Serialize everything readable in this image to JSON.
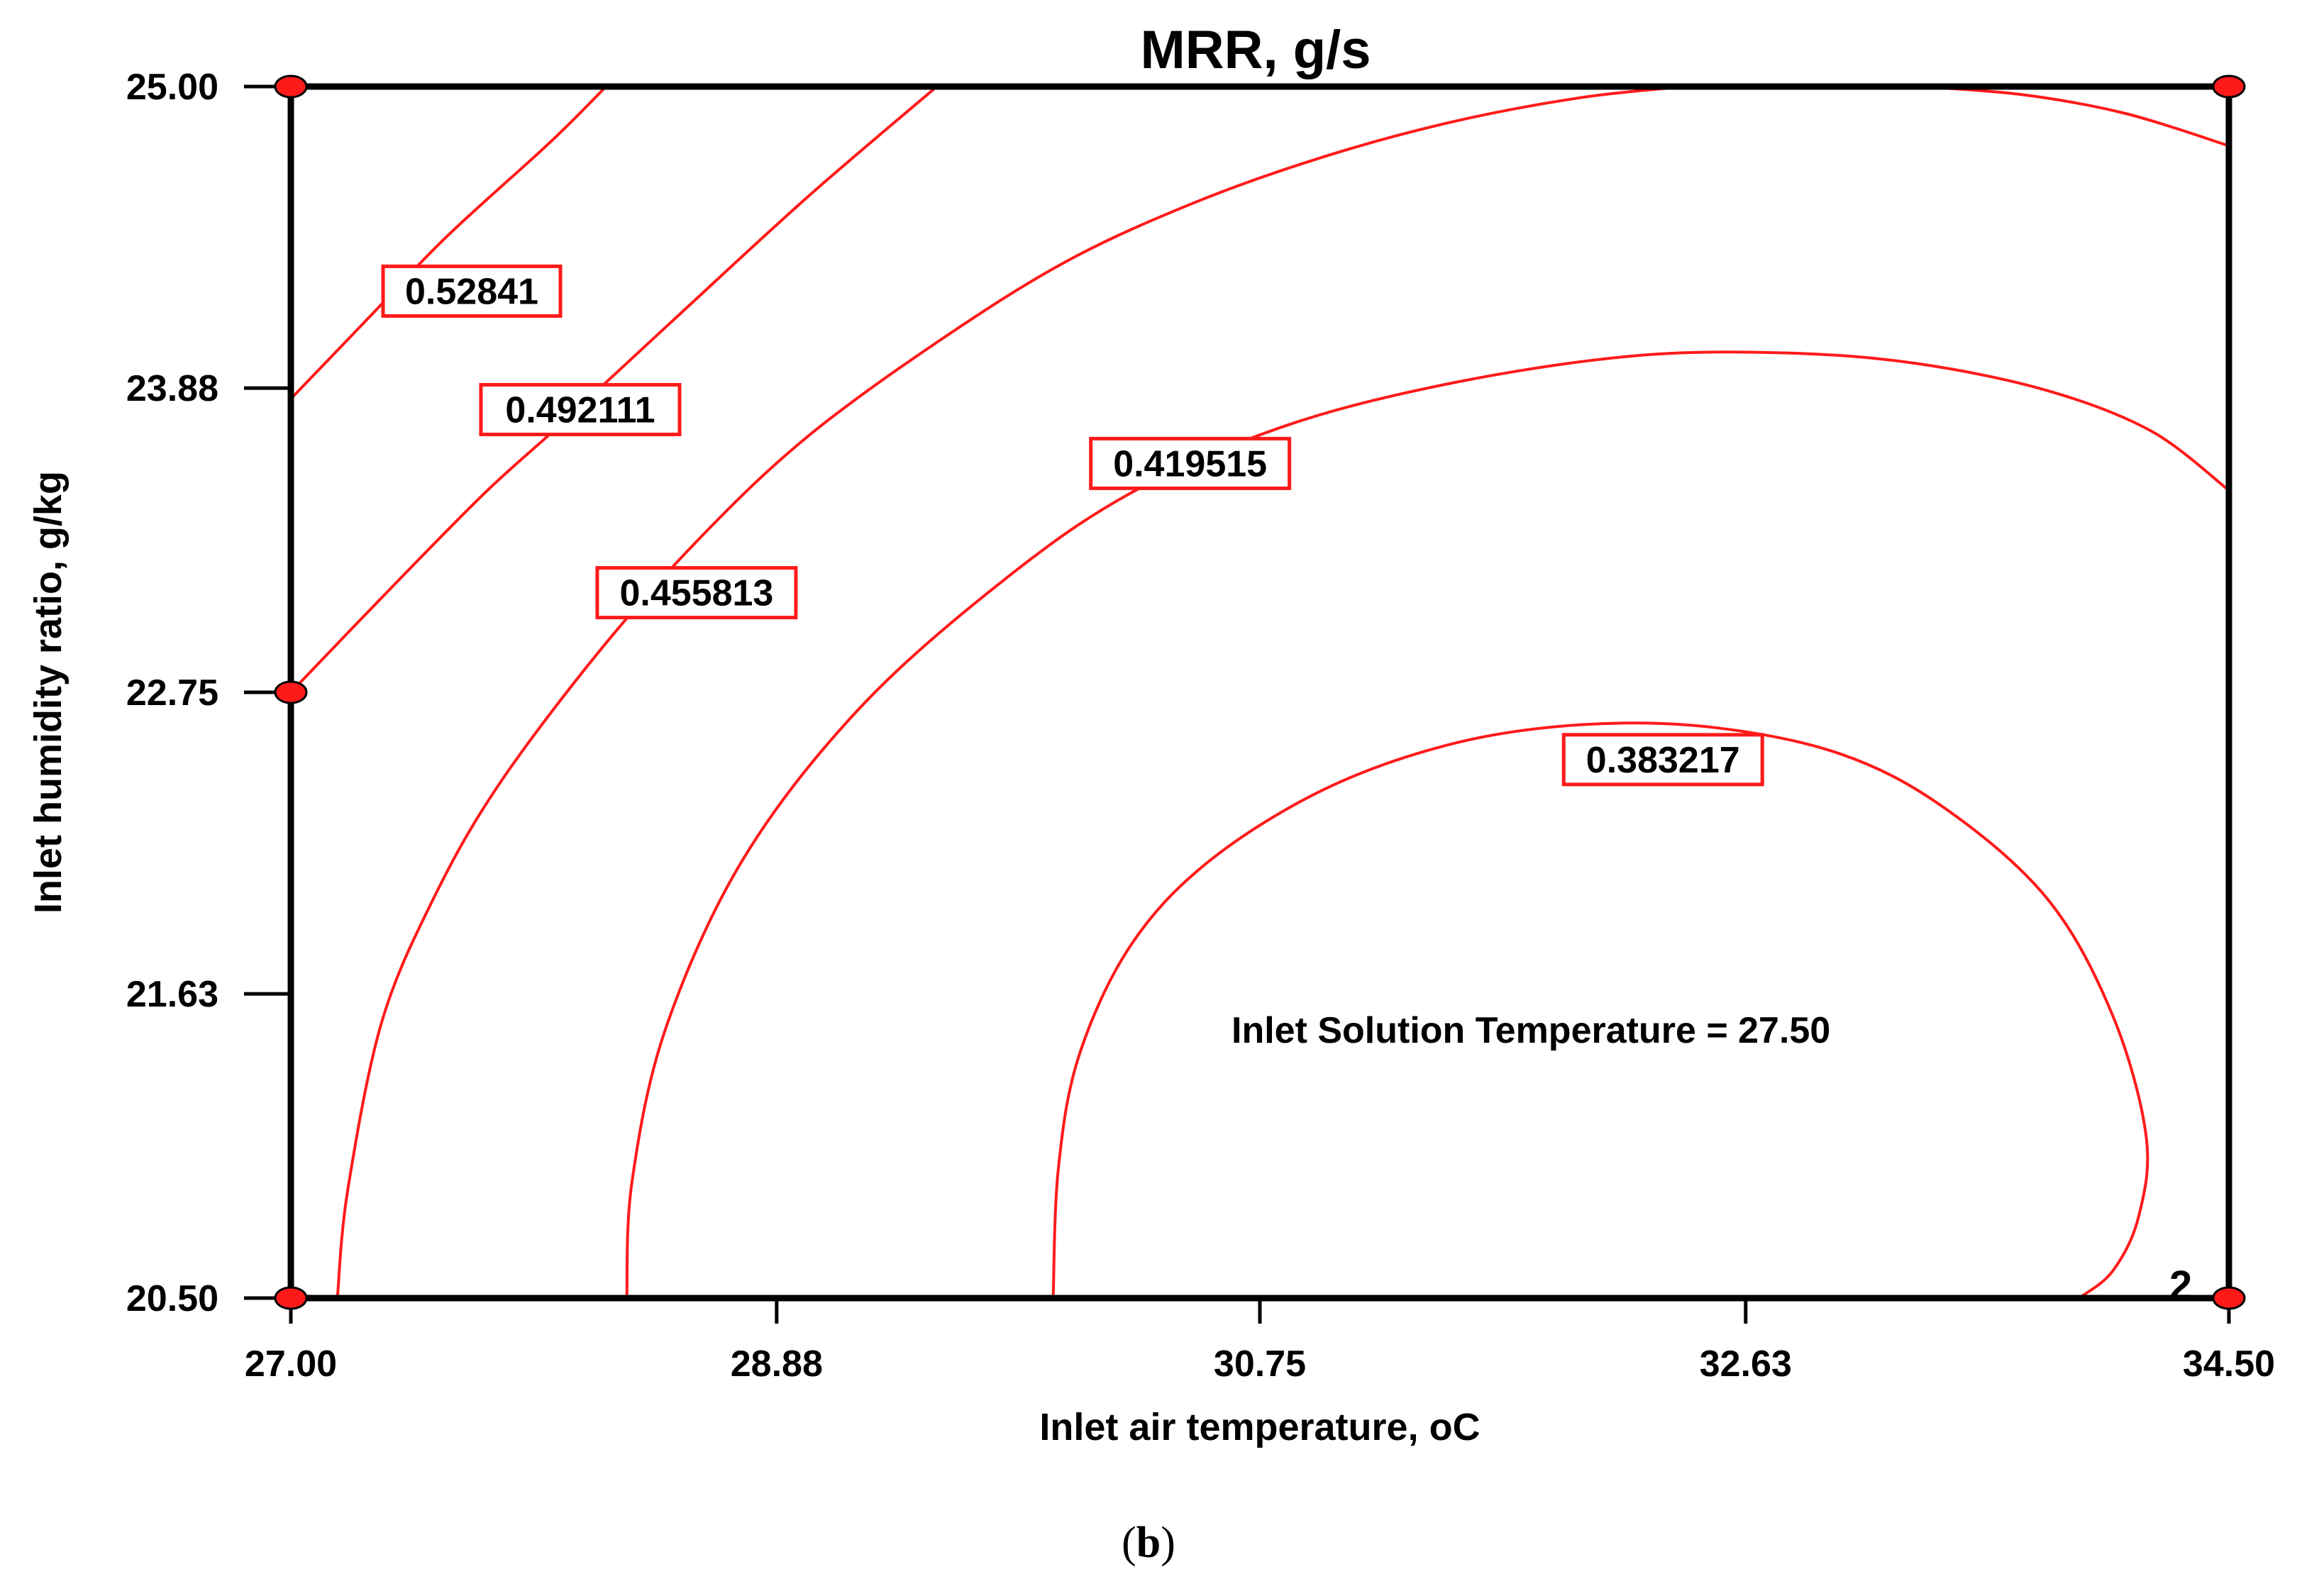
{
  "chart_data": {
    "type": "contour",
    "title": "MRR, g/s",
    "xlabel": "Inlet air temperature, oC",
    "ylabel": "Inlet humidity ratio, g/kg",
    "xlim": [
      27.0,
      34.5
    ],
    "ylim": [
      20.5,
      25.0
    ],
    "x_ticks": [
      "27.00",
      "28.88",
      "30.75",
      "32.63",
      "34.50"
    ],
    "y_ticks": [
      "20.50",
      "21.63",
      "22.75",
      "23.88",
      "25.00"
    ],
    "x_tick_values": [
      27.0,
      28.88,
      30.75,
      32.63,
      34.5
    ],
    "y_tick_values": [
      20.5,
      21.63,
      22.75,
      23.88,
      25.0
    ],
    "annotation": "Inlet Solution Temperature = 27.50",
    "corner_label": "2",
    "design_points": [
      [
        27.0,
        25.0
      ],
      [
        34.5,
        25.0
      ],
      [
        27.0,
        22.75
      ],
      [
        27.0,
        20.5
      ],
      [
        34.5,
        20.5
      ]
    ],
    "series": [
      {
        "name": "0.52841",
        "label_at": [
          27.7,
          24.24
        ],
        "points": [
          [
            27.0,
            23.84
          ],
          [
            27.3,
            24.14
          ],
          [
            27.6,
            24.44
          ],
          [
            28.0,
            24.79
          ],
          [
            28.22,
            25.0
          ]
        ]
      },
      {
        "name": "0.492111",
        "label_at": [
          28.12,
          23.8
        ],
        "points": [
          [
            27.0,
            22.75
          ],
          [
            27.35,
            23.1
          ],
          [
            27.75,
            23.49
          ],
          [
            28.05,
            23.75
          ],
          [
            28.5,
            24.15
          ],
          [
            29.0,
            24.59
          ],
          [
            29.5,
            25.0
          ]
        ]
      },
      {
        "name": "0.455813",
        "label_at": [
          28.57,
          23.12
        ],
        "points": [
          [
            27.18,
            20.5
          ],
          [
            27.22,
            20.9
          ],
          [
            27.35,
            21.52
          ],
          [
            27.55,
            21.98
          ],
          [
            27.8,
            22.4
          ],
          [
            28.2,
            22.91
          ],
          [
            28.6,
            23.34
          ],
          [
            29.0,
            23.7
          ],
          [
            29.5,
            24.05
          ],
          [
            30.0,
            24.35
          ],
          [
            30.5,
            24.57
          ],
          [
            31.0,
            24.74
          ],
          [
            31.5,
            24.87
          ],
          [
            32.0,
            24.96
          ],
          [
            32.4,
            25.0
          ]
        ]
      },
      {
        "name": "0.419515",
        "label_at": [
          30.48,
          23.6
        ],
        "points": [
          [
            28.3,
            20.5
          ],
          [
            28.32,
            20.93
          ],
          [
            28.45,
            21.5
          ],
          [
            28.75,
            22.13
          ],
          [
            29.2,
            22.69
          ],
          [
            29.75,
            23.16
          ],
          [
            30.25,
            23.49
          ],
          [
            30.85,
            23.74
          ],
          [
            31.5,
            23.9
          ],
          [
            32.2,
            24.0
          ],
          [
            32.8,
            24.01
          ],
          [
            33.3,
            23.97
          ],
          [
            33.8,
            23.87
          ],
          [
            34.2,
            23.72
          ],
          [
            34.5,
            23.5
          ]
        ]
      },
      {
        "name": "0.383217",
        "label_at": [
          32.31,
          22.5
        ],
        "points": [
          [
            29.95,
            20.5
          ],
          [
            29.97,
            20.98
          ],
          [
            30.05,
            21.4
          ],
          [
            30.25,
            21.81
          ],
          [
            30.55,
            22.12
          ],
          [
            31.0,
            22.39
          ],
          [
            31.5,
            22.56
          ],
          [
            32.0,
            22.63
          ],
          [
            32.5,
            22.62
          ],
          [
            33.0,
            22.52
          ],
          [
            33.4,
            22.32
          ],
          [
            33.8,
            21.98
          ],
          [
            34.05,
            21.55
          ],
          [
            34.18,
            21.1
          ],
          [
            34.15,
            20.8
          ],
          [
            34.05,
            20.6
          ],
          [
            33.92,
            20.5
          ]
        ]
      },
      {
        "name": "",
        "label_at": null,
        "points": [
          [
            33.3,
            25.0
          ],
          [
            33.7,
            24.97
          ],
          [
            34.1,
            24.9
          ],
          [
            34.5,
            24.78
          ]
        ]
      }
    ]
  },
  "caption": {
    "open": "(",
    "letter": "b",
    "close": ")"
  }
}
